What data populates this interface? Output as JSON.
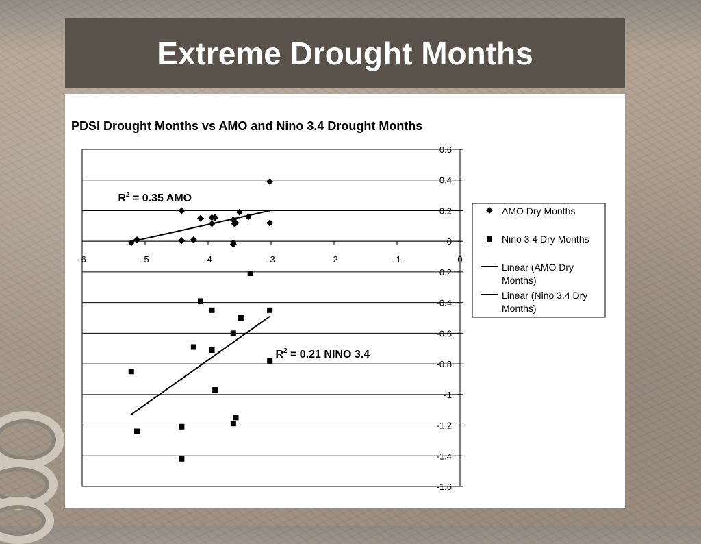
{
  "slide": {
    "title": "Extreme Drought Months"
  },
  "chart_data": {
    "type": "scatter",
    "title": "PDSI Drought Months vs AMO and Nino 3.4 Drought Months",
    "xlim": [
      -6,
      0
    ],
    "ylim": [
      -1.6,
      0.6
    ],
    "x_ticks": [
      "-6",
      "-5",
      "-4",
      "-3",
      "-2",
      "-1",
      "0"
    ],
    "y_ticks": [
      "0.6",
      "0.4",
      "0.2",
      "0",
      "-0.2",
      "-0.4",
      "-0.6",
      "-0.8",
      "-1",
      "-1.2",
      "-1.4",
      "-1.6"
    ],
    "gridlines": "horizontal",
    "legend_position": "right",
    "series": [
      {
        "name": "AMO Dry Months",
        "marker": "diamond",
        "color": "#000000",
        "points": [
          [
            -5.22,
            -0.01
          ],
          [
            -5.13,
            0.01
          ],
          [
            -4.42,
            0.2
          ],
          [
            -4.42,
            0.005
          ],
          [
            -4.23,
            0.01
          ],
          [
            -4.12,
            0.15
          ],
          [
            -3.94,
            0.155
          ],
          [
            -3.94,
            0.115
          ],
          [
            -3.89,
            0.155
          ],
          [
            -3.6,
            0.14
          ],
          [
            -3.58,
            0.115
          ],
          [
            -3.56,
            0.12
          ],
          [
            -3.5,
            0.19
          ],
          [
            -3.36,
            0.16
          ],
          [
            -3.02,
            0.39
          ],
          [
            -3.02,
            0.12
          ],
          [
            -3.6,
            -0.01
          ],
          [
            -3.6,
            -0.02
          ]
        ]
      },
      {
        "name": "Nino 3.4 Dry Months",
        "marker": "square",
        "color": "#000000",
        "points": [
          [
            -5.22,
            -0.85
          ],
          [
            -5.13,
            -1.24
          ],
          [
            -4.42,
            -1.21
          ],
          [
            -4.42,
            -1.42
          ],
          [
            -4.23,
            -0.69
          ],
          [
            -4.12,
            -0.39
          ],
          [
            -3.94,
            -0.45
          ],
          [
            -3.94,
            -0.71
          ],
          [
            -3.89,
            -0.97
          ],
          [
            -3.6,
            -0.6
          ],
          [
            -3.6,
            -1.19
          ],
          [
            -3.56,
            -1.15
          ],
          [
            -3.48,
            -0.5
          ],
          [
            -3.33,
            -0.21
          ],
          [
            -3.02,
            -0.45
          ],
          [
            -3.02,
            -0.78
          ]
        ]
      },
      {
        "name": "Linear (AMO Dry Months)",
        "type": "line",
        "color": "#000000",
        "x": [
          -5.25,
          -3.02
        ],
        "y": [
          -0.005,
          0.2
        ]
      },
      {
        "name": "Linear (Nino 3.4 Dry Months)",
        "type": "line",
        "color": "#000000",
        "x": [
          -5.22,
          -3.02
        ],
        "y": [
          -1.13,
          -0.49
        ]
      }
    ],
    "annotations": [
      {
        "r2_label": "R",
        "sup": "2",
        "text": " = 0.35 AMO",
        "x": -5.43,
        "y": 0.26
      },
      {
        "r2_label": "R",
        "sup": "2",
        "text": " = 0.21 NINO 3.4",
        "x": -2.93,
        "y": -0.76
      }
    ]
  }
}
